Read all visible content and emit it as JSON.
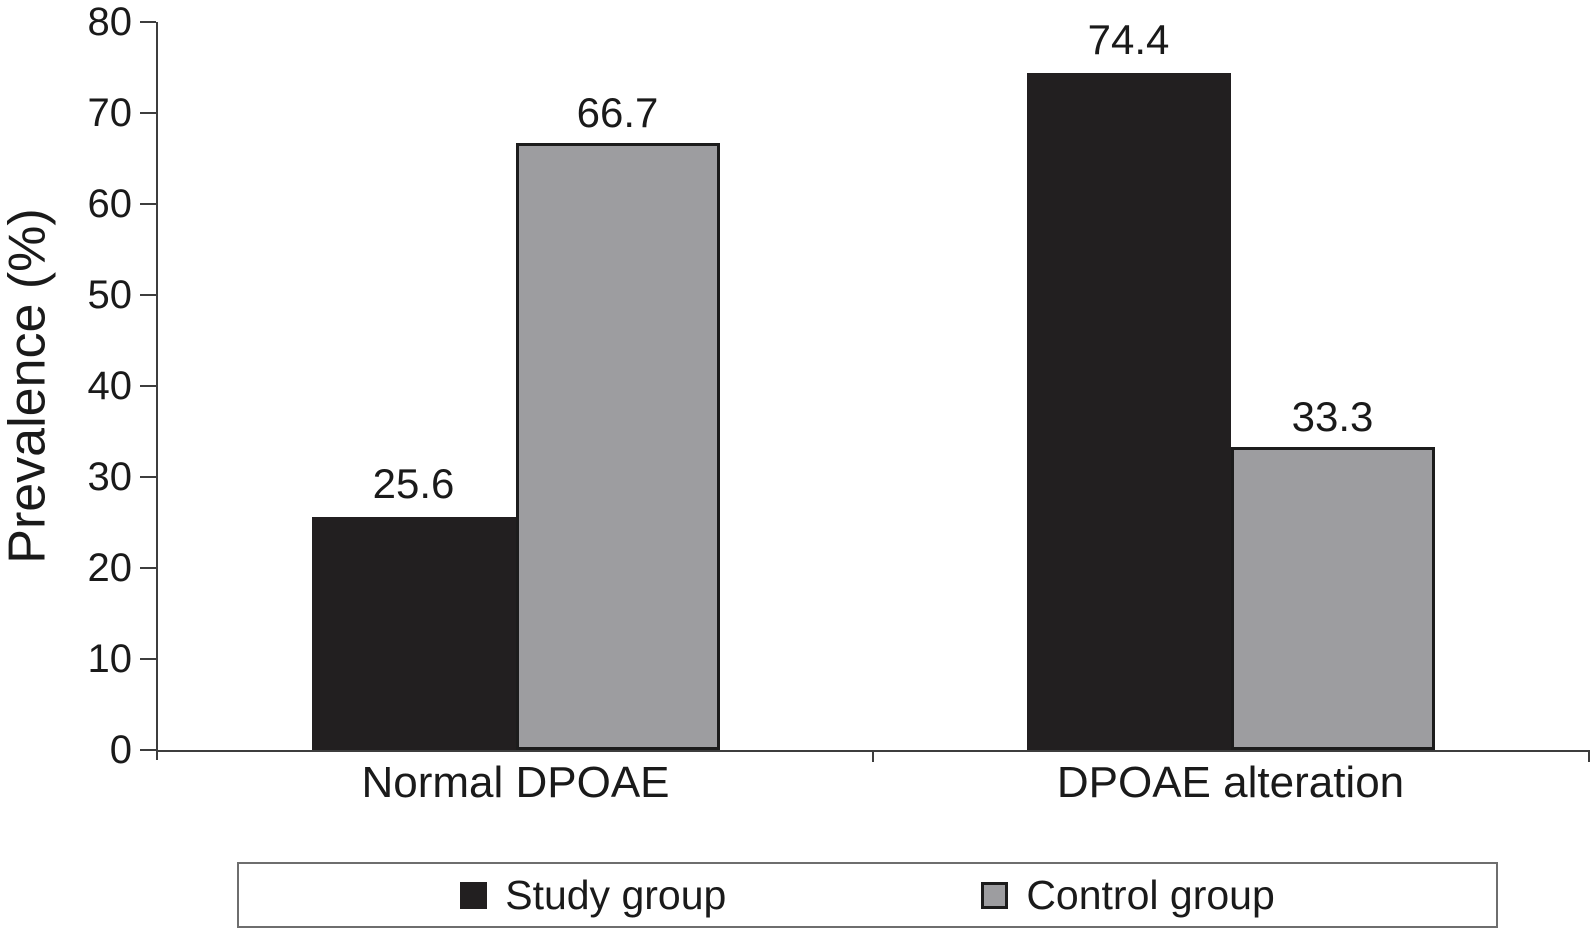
{
  "chart_data": {
    "type": "bar",
    "title": "",
    "xlabel": "",
    "ylabel": "Prevalence (%)",
    "categories": [
      "Normal DPOAE",
      "DPOAE alteration"
    ],
    "series": [
      {
        "name": "Study group",
        "color": "#221f20",
        "values": [
          25.6,
          74.4
        ]
      },
      {
        "name": "Control group",
        "color": "#9d9da0",
        "values": [
          66.7,
          33.3
        ]
      }
    ],
    "ylim": [
      0,
      80
    ],
    "yticks": [
      0,
      10,
      20,
      30,
      40,
      50,
      60,
      70,
      80
    ],
    "grid": false,
    "legend_position": "bottom"
  },
  "colors": {
    "study_bar": "#221f20",
    "control_bar": "#9d9da0",
    "bar_border": "#1c1c1c",
    "axis": "#3d3d3d",
    "legend_border": "#6e6e6e",
    "text": "#1a1a1a",
    "background": "#ffffff"
  }
}
